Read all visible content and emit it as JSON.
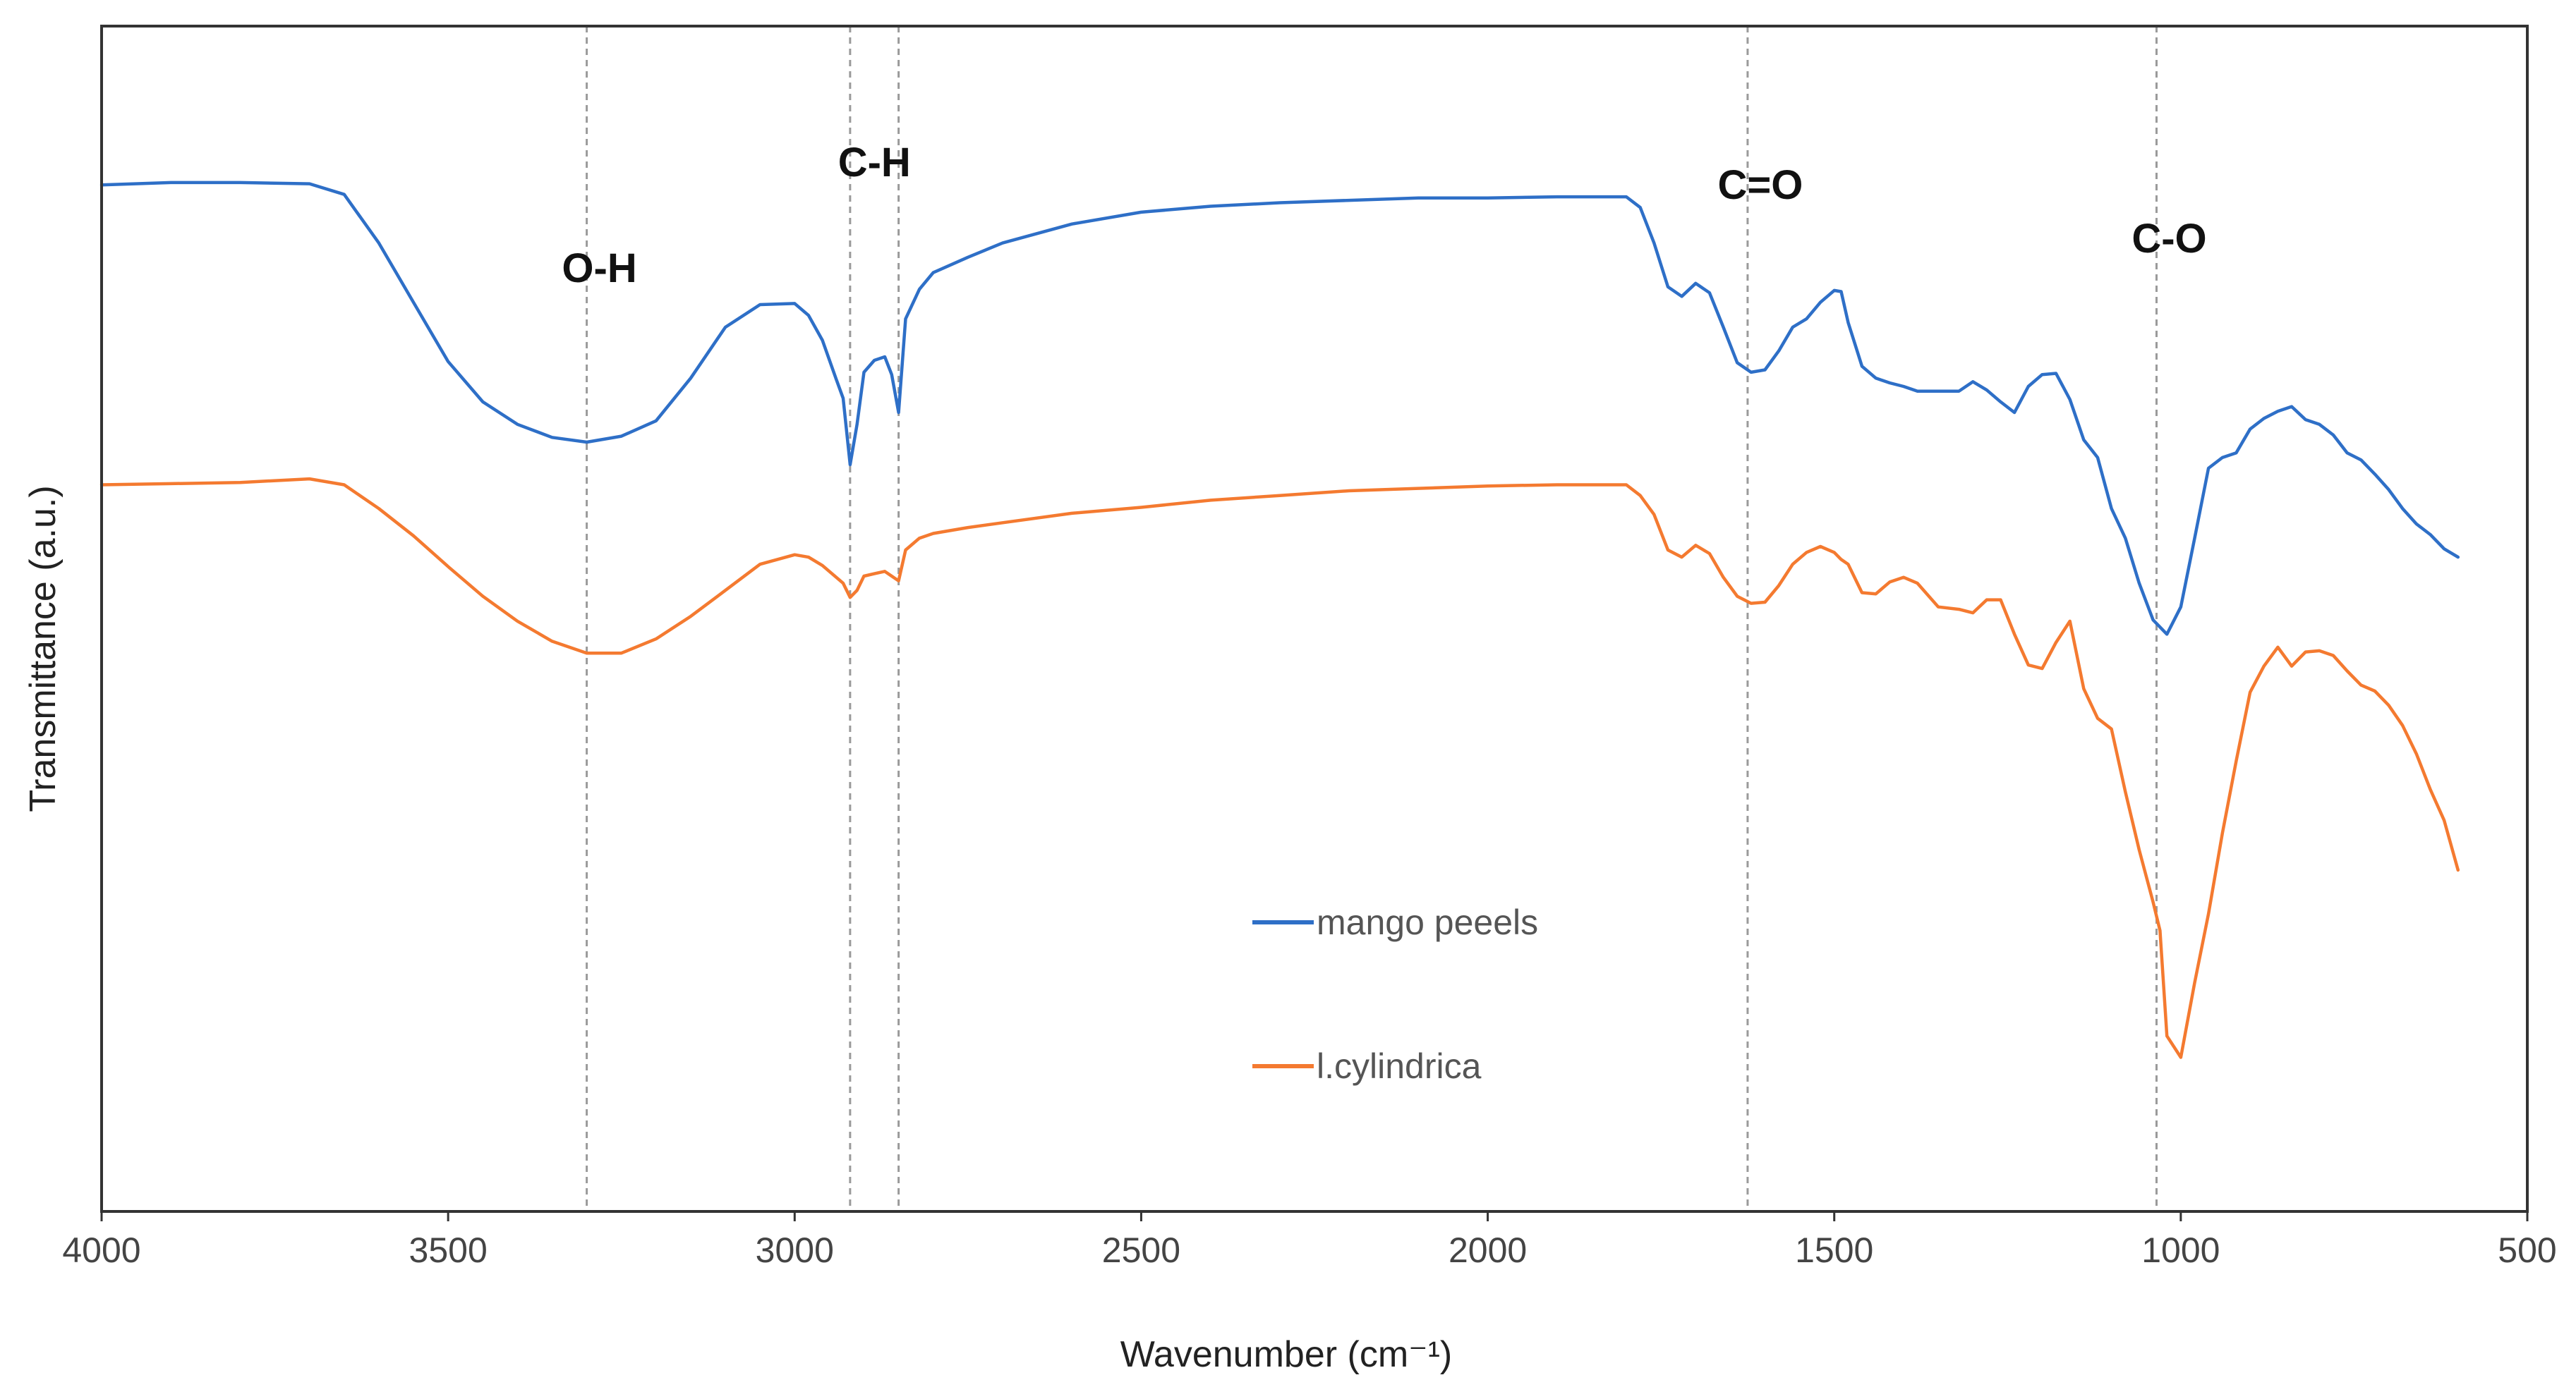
{
  "chart_data": {
    "type": "line",
    "title": "",
    "xlabel": "Wavenumber (cm⁻¹)",
    "ylabel": "Transmittance (a.u.)",
    "xlim": [
      4000,
      500
    ],
    "x_ticks": [
      "4000",
      "3500",
      "3000",
      "2500",
      "2000",
      "1500",
      "1000",
      "500"
    ],
    "ylim": [
      0,
      100
    ],
    "y_ticks_shown": false,
    "grid": false,
    "legend_position": "lower-center",
    "band_markers": [
      {
        "label": "O-H",
        "lines": [
          3300
        ]
      },
      {
        "label": "C-H",
        "lines": [
          2920,
          2850
        ]
      },
      {
        "label": "C=O",
        "lines": [
          1625
        ]
      },
      {
        "label": "C-O",
        "lines": [
          1035
        ]
      }
    ],
    "series": [
      {
        "name": "mango peeels",
        "color": "#2e6fc7",
        "x": [
          4000,
          3900,
          3800,
          3700,
          3650,
          3600,
          3550,
          3500,
          3450,
          3400,
          3350,
          3300,
          3250,
          3200,
          3150,
          3100,
          3050,
          3000,
          2980,
          2960,
          2940,
          2930,
          2920,
          2910,
          2900,
          2885,
          2870,
          2860,
          2850,
          2840,
          2820,
          2800,
          2750,
          2700,
          2600,
          2500,
          2400,
          2300,
          2200,
          2100,
          2000,
          1900,
          1800,
          1780,
          1760,
          1740,
          1720,
          1700,
          1680,
          1660,
          1640,
          1620,
          1600,
          1580,
          1560,
          1540,
          1520,
          1500,
          1490,
          1480,
          1460,
          1440,
          1420,
          1400,
          1380,
          1350,
          1320,
          1300,
          1280,
          1260,
          1240,
          1220,
          1200,
          1180,
          1160,
          1140,
          1120,
          1100,
          1080,
          1060,
          1040,
          1030,
          1020,
          1000,
          980,
          960,
          940,
          920,
          900,
          880,
          860,
          840,
          820,
          800,
          780,
          760,
          740,
          720,
          700,
          680,
          660,
          640,
          620,
          600
        ],
        "values": [
          86.6,
          86.8,
          86.8,
          86.7,
          85.8,
          81.7,
          76.7,
          71.7,
          68.3,
          66.4,
          65.3,
          64.9,
          65.4,
          66.7,
          70.3,
          74.6,
          76.5,
          76.6,
          75.6,
          73.5,
          70.2,
          68.6,
          63.0,
          66.4,
          70.8,
          71.8,
          72.1,
          70.6,
          67.4,
          75.3,
          77.8,
          79.2,
          80.5,
          81.7,
          83.3,
          84.3,
          84.8,
          85.1,
          85.3,
          85.5,
          85.5,
          85.6,
          85.6,
          84.7,
          81.7,
          78.0,
          77.2,
          78.3,
          77.5,
          74.6,
          71.6,
          70.8,
          71.0,
          72.6,
          74.6,
          75.3,
          76.7,
          77.7,
          77.6,
          75.0,
          71.3,
          70.3,
          69.9,
          69.6,
          69.2,
          69.2,
          69.2,
          70.0,
          69.3,
          68.3,
          67.4,
          69.6,
          70.6,
          70.7,
          68.5,
          65.1,
          63.6,
          59.3,
          56.8,
          53.0,
          49.9,
          49.3,
          48.7,
          51.0,
          56.8,
          62.7,
          63.6,
          64.0,
          66.0,
          66.9,
          67.5,
          67.9,
          66.8,
          66.4,
          65.5,
          64.0,
          63.4,
          62.2,
          60.9,
          59.3,
          58.0,
          57.1,
          55.9,
          55.2
        ]
      },
      {
        "name": "l.cylindrica",
        "color": "#f47a30",
        "x": [
          4000,
          3900,
          3800,
          3700,
          3650,
          3600,
          3550,
          3500,
          3450,
          3400,
          3350,
          3300,
          3250,
          3200,
          3150,
          3100,
          3050,
          3000,
          2980,
          2960,
          2940,
          2930,
          2920,
          2910,
          2900,
          2885,
          2870,
          2860,
          2850,
          2840,
          2820,
          2800,
          2750,
          2700,
          2600,
          2500,
          2400,
          2300,
          2200,
          2100,
          2000,
          1900,
          1800,
          1780,
          1760,
          1740,
          1720,
          1700,
          1680,
          1660,
          1640,
          1620,
          1600,
          1580,
          1560,
          1540,
          1520,
          1500,
          1490,
          1480,
          1460,
          1440,
          1420,
          1400,
          1380,
          1350,
          1320,
          1300,
          1280,
          1260,
          1240,
          1220,
          1200,
          1180,
          1160,
          1140,
          1120,
          1100,
          1080,
          1060,
          1040,
          1030,
          1020,
          1000,
          980,
          960,
          940,
          920,
          900,
          880,
          860,
          840,
          820,
          800,
          780,
          760,
          740,
          720,
          700,
          680,
          660,
          640,
          620,
          600
        ],
        "values": [
          61.3,
          61.4,
          61.5,
          61.8,
          61.3,
          59.3,
          57.0,
          54.4,
          51.9,
          49.8,
          48.1,
          47.1,
          47.1,
          48.3,
          50.2,
          52.4,
          54.6,
          55.4,
          55.2,
          54.5,
          53.5,
          53.0,
          51.8,
          52.4,
          53.6,
          53.8,
          54.0,
          53.6,
          53.2,
          55.8,
          56.8,
          57.2,
          57.7,
          58.1,
          58.9,
          59.4,
          60.0,
          60.4,
          60.8,
          61.0,
          61.2,
          61.3,
          61.3,
          60.4,
          58.8,
          55.8,
          55.2,
          56.2,
          55.5,
          53.5,
          51.9,
          51.3,
          51.4,
          52.8,
          54.6,
          55.6,
          56.1,
          55.6,
          55.0,
          54.6,
          52.2,
          52.1,
          53.1,
          53.5,
          53.0,
          51.0,
          50.8,
          50.5,
          51.6,
          51.6,
          48.7,
          46.1,
          45.8,
          48.0,
          49.8,
          44.1,
          41.6,
          40.7,
          35.4,
          30.5,
          26.1,
          23.7,
          14.8,
          13.0,
          19.3,
          25.1,
          31.9,
          38.0,
          43.8,
          46.0,
          47.6,
          46.0,
          47.2,
          47.3,
          46.9,
          45.6,
          44.4,
          43.9,
          42.7,
          41.0,
          38.6,
          35.6,
          33.0,
          28.8
        ]
      }
    ]
  }
}
